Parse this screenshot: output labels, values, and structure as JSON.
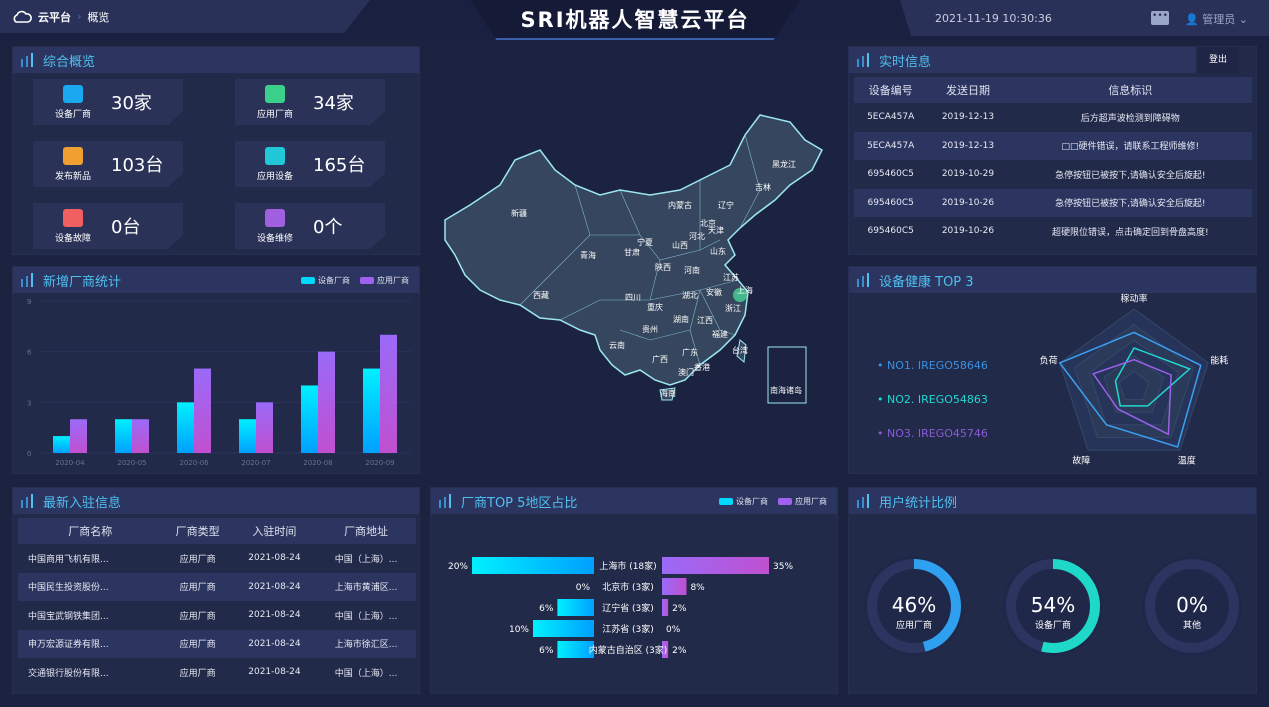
{
  "header": {
    "home": "云平台",
    "page": "概览",
    "title": "SRI机器人智慧云平台",
    "datetime": "2021-11-19 10:30:36",
    "user": "管理员",
    "icons": [
      "cloud-icon",
      "message-icon",
      "user-icon"
    ]
  },
  "overview": {
    "title": "综合概览",
    "items": [
      {
        "label": "设备厂商",
        "value": "30家",
        "icon": "factory-icon",
        "color": "#1aa8f0"
      },
      {
        "label": "应用厂商",
        "value": "34家",
        "icon": "building-icon",
        "color": "#3ad08a"
      },
      {
        "label": "发布新品",
        "value": "103台",
        "icon": "new-badge-icon",
        "color": "#f0a030"
      },
      {
        "label": "应用设备",
        "value": "165台",
        "icon": "device-gear-icon",
        "color": "#20c8d8"
      },
      {
        "label": "设备故障",
        "value": "0台",
        "icon": "alarm-icon",
        "color": "#f06060"
      },
      {
        "label": "设备维修",
        "value": "0个",
        "icon": "wrench-icon",
        "color": "#a060e0"
      }
    ]
  },
  "realtime": {
    "title": "实时信息",
    "logout": "登出",
    "columns": [
      "设备编号",
      "发送日期",
      "信息标识"
    ],
    "rows": [
      [
        "5ECA457A",
        "2019-12-13",
        "后方超声波检测到障碍物"
      ],
      [
        "5ECA457A",
        "2019-12-13",
        "□□硬件错误，请联系工程师维修!"
      ],
      [
        "695460C5",
        "2019-10-29",
        "急停按钮已被按下,请确认安全后旋起!"
      ],
      [
        "695460C5",
        "2019-10-26",
        "急停按钮已被按下,请确认安全后旋起!"
      ],
      [
        "695460C5",
        "2019-10-26",
        "超硬限位错误，点击确定回到骨盘高度!"
      ]
    ]
  },
  "new_vendors": {
    "title": "新增厂商统计"
  },
  "health": {
    "title": "设备健康 TOP 3",
    "items": [
      "• NO1. IREGO58646",
      "• NO2. IREGO54863",
      "• NO3. IREGO45746"
    ]
  },
  "latest": {
    "title": "最新入驻信息",
    "columns": [
      "厂商名称",
      "厂商类型",
      "入驻时间",
      "厂商地址"
    ],
    "rows": [
      [
        "中国商用飞机有限...",
        "应用厂商",
        "2021-08-24",
        "中国（上海）..."
      ],
      [
        "中国民生投资股份...",
        "应用厂商",
        "2021-08-24",
        "上海市黄浦区..."
      ],
      [
        "中国宝武钢铁集团...",
        "应用厂商",
        "2021-08-24",
        "中国（上海）..."
      ],
      [
        "申万宏源证券有限...",
        "应用厂商",
        "2021-08-24",
        "上海市徐汇区..."
      ],
      [
        "交通银行股份有限...",
        "应用厂商",
        "2021-08-24",
        "中国（上海）..."
      ]
    ]
  },
  "top5": {
    "title": "厂商TOP 5地区占比"
  },
  "user_ratio": {
    "title": "用户统计比例"
  },
  "map": {
    "labels": [
      "黑龙江",
      "吉林",
      "辽宁",
      "内蒙古",
      "新疆",
      "北京",
      "天津",
      "河北",
      "宁夏",
      "山西",
      "山东",
      "甘肃",
      "青海",
      "陕西",
      "河南",
      "江苏",
      "安徽",
      "西藏",
      "四川",
      "湖北",
      "上海",
      "重庆",
      "浙江",
      "湖南",
      "江西",
      "贵州",
      "福建",
      "云南",
      "广西",
      "广东",
      "台湾",
      "香港",
      "澳门",
      "海南",
      "南海诸岛"
    ]
  },
  "chart_data": [
    {
      "type": "bar",
      "categories": [
        "2020-04",
        "2020-05",
        "2020-06",
        "2020-07",
        "2020-08",
        "2020-09"
      ],
      "ylim": [
        0,
        9
      ],
      "yticks": [
        "0",
        "3",
        "6",
        "9"
      ],
      "legend": "top-right",
      "series": [
        {
          "name": "设备厂商",
          "values": [
            1,
            2,
            3,
            2,
            4,
            5
          ],
          "color": "#00d8ff"
        },
        {
          "name": "应用厂商",
          "values": [
            2,
            2,
            5,
            3,
            6,
            7
          ],
          "color": "#a060f0"
        }
      ]
    },
    {
      "type": "bar",
      "orientation": "horizontal-butterfly",
      "categories": [
        "上海市 (18家)",
        "北京市 (3家)",
        "辽宁省 (3家)",
        "江苏省 (3家)",
        "内蒙古自治区 (3家)"
      ],
      "legend": "top-right",
      "series": [
        {
          "name": "设备厂商",
          "values": [
            20,
            0,
            6,
            10,
            6
          ],
          "color": "#00d8ff"
        },
        {
          "name": "应用厂商",
          "values": [
            35,
            8,
            2,
            0,
            2
          ],
          "color": "#a060f0"
        }
      ]
    },
    {
      "type": "radar",
      "indicators": [
        "稼动率",
        "能耗",
        "温度",
        "故障",
        "负荷"
      ],
      "max": 100,
      "series": [
        {
          "name": "NO1. IREGO58646",
          "values": [
            70,
            90,
            95,
            60,
            100
          ],
          "color": "#3aa0f0"
        },
        {
          "name": "NO2. IREGO54863",
          "values": [
            50,
            75,
            30,
            30,
            25
          ],
          "color": "#20d8d0"
        },
        {
          "name": "NO3. IREGO45746",
          "values": [
            35,
            50,
            75,
            35,
            55
          ],
          "color": "#9a60e8"
        }
      ]
    },
    {
      "type": "pie",
      "variant": "donut-gauges",
      "items": [
        {
          "label": "应用厂商",
          "value": 46,
          "text": "46%",
          "color": "#2fa0f0"
        },
        {
          "label": "设备厂商",
          "value": 54,
          "text": "54%",
          "color": "#20d8c8"
        },
        {
          "label": "其他",
          "value": 0,
          "text": "0%",
          "color": "#2fa0f0"
        }
      ]
    }
  ]
}
